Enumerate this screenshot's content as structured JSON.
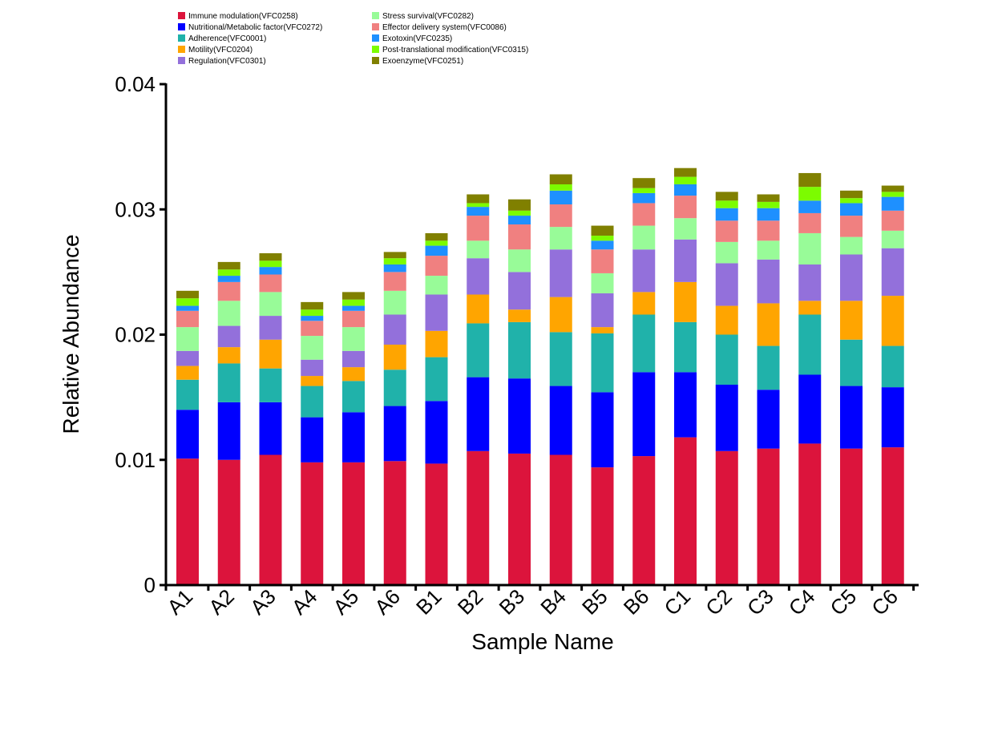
{
  "chart_data": {
    "type": "bar",
    "stacked": true,
    "title": "",
    "xlabel": "Sample Name",
    "ylabel": "Relative Abundance",
    "ylim": [
      0,
      0.04
    ],
    "y_ticks": [
      "0",
      "0.01",
      "0.02",
      "0.03",
      "0.04"
    ],
    "y_tick_values": [
      0,
      0.01,
      0.02,
      0.03,
      0.04
    ],
    "grid": false,
    "legend_position": "top",
    "categories": [
      "A1",
      "A2",
      "A3",
      "A4",
      "A5",
      "A6",
      "B1",
      "B2",
      "B3",
      "B4",
      "B5",
      "B6",
      "C1",
      "C2",
      "C3",
      "C4",
      "C5",
      "C6"
    ],
    "series": [
      {
        "name": "Immune modulation(VFC0258)",
        "color": "#dc143c",
        "values": [
          0.0101,
          0.01,
          0.0104,
          0.0098,
          0.0098,
          0.0099,
          0.0097,
          0.0107,
          0.0105,
          0.0104,
          0.0094,
          0.0103,
          0.0118,
          0.0107,
          0.0109,
          0.0113,
          0.0109,
          0.011
        ]
      },
      {
        "name": "Nutritional/Metabolic factor(VFC0272)",
        "color": "#0000ff",
        "values": [
          0.0039,
          0.0046,
          0.0042,
          0.0036,
          0.004,
          0.0044,
          0.005,
          0.0059,
          0.006,
          0.0055,
          0.006,
          0.0067,
          0.0052,
          0.0053,
          0.0047,
          0.0055,
          0.005,
          0.0048
        ]
      },
      {
        "name": "Adherence(VFC0001)",
        "color": "#20b2aa",
        "values": [
          0.0024,
          0.0031,
          0.0027,
          0.0025,
          0.0025,
          0.0029,
          0.0035,
          0.0043,
          0.0045,
          0.0043,
          0.0047,
          0.0046,
          0.004,
          0.004,
          0.0035,
          0.0048,
          0.0037,
          0.0033
        ]
      },
      {
        "name": "Motility(VFC0204)",
        "color": "#ffa500",
        "values": [
          0.0011,
          0.0013,
          0.0023,
          0.0008,
          0.0011,
          0.002,
          0.0021,
          0.0023,
          0.001,
          0.0028,
          0.0005,
          0.0018,
          0.0032,
          0.0023,
          0.0034,
          0.0011,
          0.0031,
          0.004
        ]
      },
      {
        "name": "Regulation(VFC0301)",
        "color": "#9370db",
        "values": [
          0.0012,
          0.0017,
          0.0019,
          0.0013,
          0.0013,
          0.0024,
          0.0029,
          0.0029,
          0.003,
          0.0038,
          0.0027,
          0.0034,
          0.0034,
          0.0034,
          0.0035,
          0.0029,
          0.0037,
          0.0038
        ]
      },
      {
        "name": "Stress survival(VFC0282)",
        "color": "#98fb98",
        "values": [
          0.0019,
          0.002,
          0.0019,
          0.0019,
          0.0019,
          0.0019,
          0.0015,
          0.0014,
          0.0018,
          0.0018,
          0.0016,
          0.0019,
          0.0017,
          0.0017,
          0.0015,
          0.0025,
          0.0014,
          0.0014
        ]
      },
      {
        "name": "Effector delivery system(VFC0086)",
        "color": "#f08080",
        "values": [
          0.0013,
          0.0015,
          0.0014,
          0.0012,
          0.0013,
          0.0015,
          0.0016,
          0.002,
          0.002,
          0.0018,
          0.0019,
          0.0018,
          0.0018,
          0.0017,
          0.0016,
          0.0016,
          0.0017,
          0.0016
        ]
      },
      {
        "name": "Exotoxin(VFC0235)",
        "color": "#1e90ff",
        "values": [
          0.0004,
          0.0005,
          0.0006,
          0.0004,
          0.0004,
          0.0006,
          0.0008,
          0.0007,
          0.0007,
          0.0011,
          0.0007,
          0.0008,
          0.0009,
          0.001,
          0.001,
          0.001,
          0.001,
          0.0011
        ]
      },
      {
        "name": "Post-translational modification(VFC0315)",
        "color": "#7cfc00",
        "values": [
          0.0006,
          0.0005,
          0.0005,
          0.0005,
          0.0005,
          0.0005,
          0.0004,
          0.0003,
          0.0004,
          0.0005,
          0.0004,
          0.0004,
          0.0006,
          0.0006,
          0.0005,
          0.0011,
          0.0004,
          0.0004
        ]
      },
      {
        "name": "Exoenzyme(VFC0251)",
        "color": "#808000",
        "values": [
          0.0006,
          0.0006,
          0.0006,
          0.0006,
          0.0006,
          0.0005,
          0.0006,
          0.0007,
          0.0009,
          0.0008,
          0.0008,
          0.0008,
          0.0007,
          0.0007,
          0.0006,
          0.0011,
          0.0006,
          0.0005
        ]
      }
    ]
  }
}
